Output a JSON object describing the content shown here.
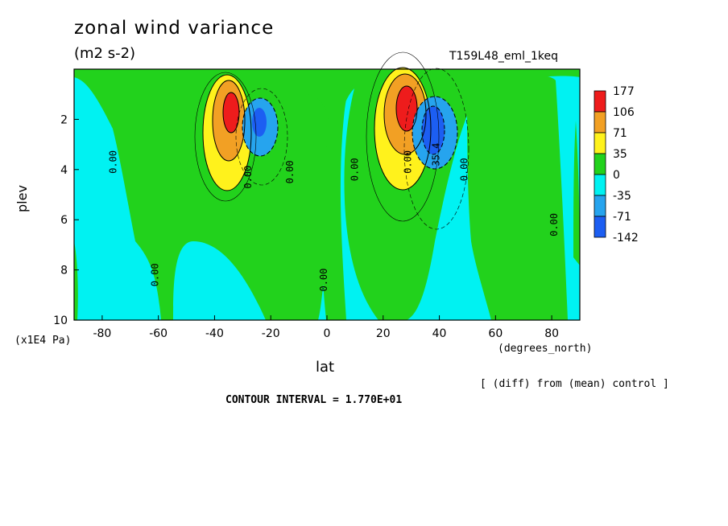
{
  "header": {
    "title": "zonal wind variance",
    "units": "(m2 s-2)",
    "experiment": "T159L48_eml_1keq"
  },
  "footer": {
    "y_unit": "(x1E4 Pa)",
    "x_unit": "(degrees_north)",
    "note": "[ (diff) from (mean) control ]",
    "contour_interval": "CONTOUR INTERVAL = 1.770E+01"
  },
  "colors": {
    "red": "#ee1c1c",
    "orange": "#f2a024",
    "yellow": "#fff21c",
    "green": "#22d21c",
    "cyan": "#00f2f2",
    "lightblue": "#26a4ee",
    "blue": "#1c5ef2"
  },
  "chart_data": {
    "type": "contour",
    "xlabel": "lat",
    "ylabel": "plev",
    "xlim": [
      -90,
      90
    ],
    "ylim": [
      10,
      0
    ],
    "xticks": [
      -80,
      -60,
      -40,
      -20,
      0,
      20,
      40,
      60,
      80
    ],
    "yticks": [
      2,
      4,
      6,
      8,
      10
    ],
    "colorbar": {
      "levels": [
        "177",
        "106",
        "71",
        "35",
        "0",
        "-35",
        "-71",
        "-142"
      ],
      "colors": [
        "#ee1c1c",
        "#f2a024",
        "#fff21c",
        "#22d21c",
        "#00f2f2",
        "#26a4ee",
        "#1c5ef2"
      ]
    },
    "contour_labels": [
      {
        "text": "0.00",
        "lat": -75,
        "plev": 3.7
      },
      {
        "text": "0.00",
        "lat": -60,
        "plev": 8.2
      },
      {
        "text": "0.00",
        "lat": -27,
        "plev": 4.3
      },
      {
        "text": "0.00",
        "lat": -12,
        "plev": 4.1
      },
      {
        "text": "0.00",
        "lat": 0,
        "plev": 8.4
      },
      {
        "text": "0.00",
        "lat": 11,
        "plev": 4.0
      },
      {
        "text": "0.00",
        "lat": 30,
        "plev": 3.7
      },
      {
        "text": "35.4",
        "lat": 40,
        "plev": 3.4
      },
      {
        "text": "0.00",
        "lat": 50,
        "plev": 4.0
      },
      {
        "text": "0.00",
        "lat": 82,
        "plev": 6.2
      }
    ],
    "features": [
      {
        "name": "positive maximum SH",
        "lat": -34,
        "plev": 1.8,
        "value_range": "106-177"
      },
      {
        "name": "negative minimum SH",
        "lat": -24,
        "plev": 2.2,
        "value_range": "-71 to -142"
      },
      {
        "name": "positive maximum NH",
        "lat": 27,
        "plev": 1.8,
        "value_range": "106-177"
      },
      {
        "name": "negative minimum NH",
        "lat": 38,
        "plev": 2.5,
        "value_range": "-71 to -142"
      }
    ]
  }
}
